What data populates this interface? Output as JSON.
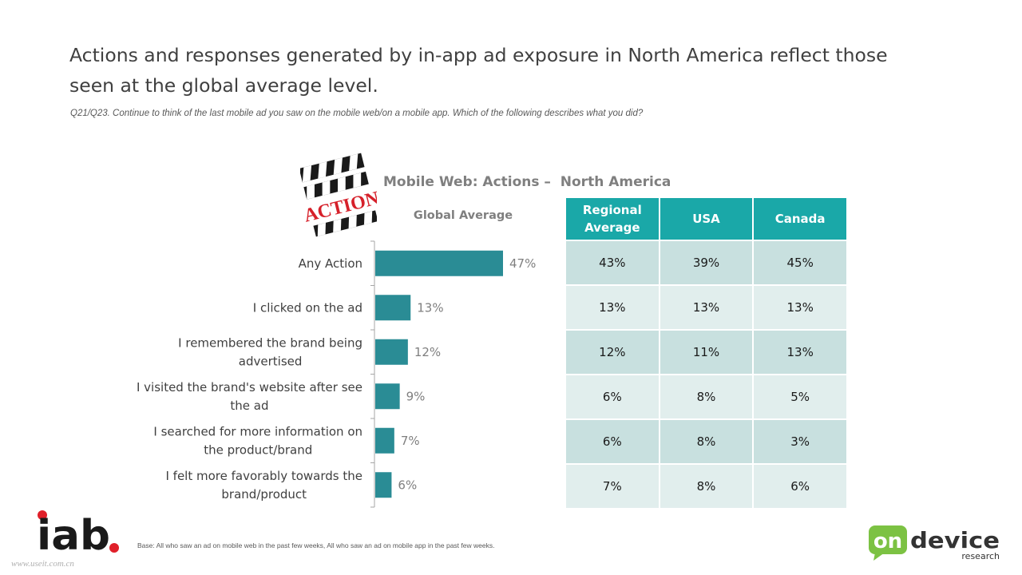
{
  "headline": "Actions and responses generated by in-app ad exposure in North America reflect those seen at the global average level.",
  "question": "Q21/Q23. Continue to think of the last mobile ad you saw on the mobile web/on a mobile app. Which of the following describes what you did?",
  "clapper_text": "ACTION",
  "chart_data": {
    "type": "bar",
    "orientation": "horizontal",
    "title": "Mobile Web: Actions –  North America",
    "series_header": "Global Average",
    "categories": [
      "Any Action",
      "I clicked on the ad",
      "I remembered the brand being advertised",
      "I visited the brand's website after see the ad",
      "I searched for more information on the product/brand",
      "I felt more favorably towards the brand/product"
    ],
    "category_lines": [
      [
        "Any Action"
      ],
      [
        "I clicked on the ad"
      ],
      [
        "I remembered the brand being",
        "advertised"
      ],
      [
        "I visited the brand's website after see",
        "the ad"
      ],
      [
        "I searched for more information on",
        "the product/brand"
      ],
      [
        "I felt more favorably towards the",
        "brand/product"
      ]
    ],
    "values": [
      47,
      13,
      12,
      9,
      7,
      6
    ],
    "value_labels": [
      "47%",
      "13%",
      "12%",
      "9%",
      "7%",
      "6%"
    ],
    "xlim": [
      0,
      100
    ],
    "bar_color": "#2a8c95",
    "grid": false
  },
  "table": {
    "headers": [
      [
        "Regional",
        "Average"
      ],
      [
        "USA"
      ],
      [
        "Canada"
      ]
    ],
    "rows": [
      [
        "43%",
        "39%",
        "45%"
      ],
      [
        "13%",
        "13%",
        "13%"
      ],
      [
        "12%",
        "11%",
        "13%"
      ],
      [
        "6%",
        "8%",
        "5%"
      ],
      [
        "6%",
        "8%",
        "3%"
      ],
      [
        "7%",
        "8%",
        "6%"
      ]
    ],
    "header_color": "#1aa8a8",
    "row_colors": [
      "#c8e0df",
      "#e1eeed"
    ]
  },
  "footer": {
    "base_note": "Base: All who saw an ad on mobile web in the past few weeks, All who saw an ad on mobile app in the past few weeks.",
    "iab_logo": "iab",
    "watermark": "www.useit.com.cn",
    "od_logo_on": "on",
    "od_logo_device": "device",
    "od_logo_research": "research"
  }
}
